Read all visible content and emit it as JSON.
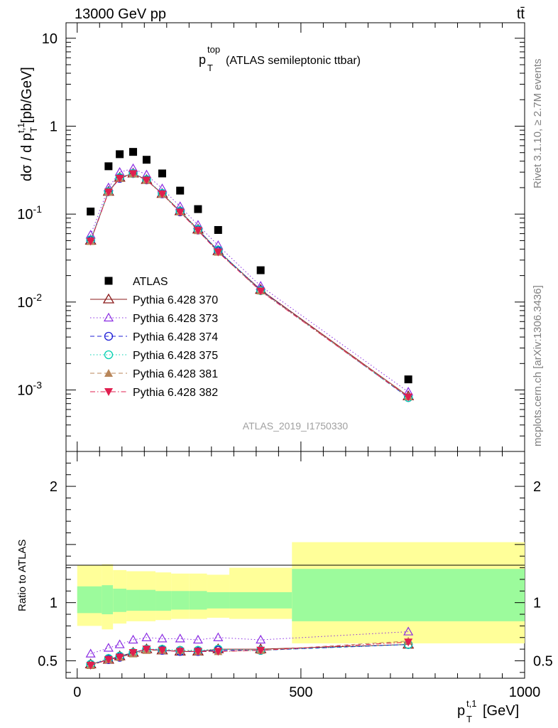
{
  "header": {
    "energy_label": "13000 GeV pp",
    "process_label": "tt̄",
    "plot_title_main": "p",
    "plot_title_sup": "top",
    "plot_title_sub": "T",
    "plot_title_rest": " (ATLAS semileptonic ttbar)",
    "side_label_rivet": "Rivet 3.1.10, ≥ 2.7M events",
    "side_label_mcplots": "mcplots.cern.ch [arXiv:1306.3436]",
    "analysis_id": "ATLAS_2019_I1750330"
  },
  "colors": {
    "ATLAS": "#000000",
    "p370": "#8b1a1a",
    "p373": "#8a2be2",
    "p374": "#1f1fd6",
    "p375": "#00d0b0",
    "p381": "#b8865a",
    "p382": "#e01f4f",
    "band_green": "#9cfb9c",
    "band_yellow": "#ffff99"
  },
  "chart_data": [
    {
      "type": "scatter",
      "panel": "main",
      "ylabel": "dσ / d p_T^{t,1} [pb/GeV]",
      "yscale": "log",
      "ylim": [
        0.0002,
        15
      ],
      "xlim": [
        -25,
        1000
      ],
      "y_tick_labels": [
        "10",
        "1",
        "10^-1",
        "10^-2",
        "10^-3"
      ],
      "x": [
        30,
        70,
        95,
        125,
        155,
        190,
        230,
        270,
        315,
        410,
        740
      ],
      "series": [
        {
          "name": "ATLAS",
          "marker": "square",
          "values": [
            0.107,
            0.35,
            0.48,
            0.51,
            0.415,
            0.29,
            0.185,
            0.114,
            0.066,
            0.023,
            0.00132
          ]
        },
        {
          "name": "Pythia 6.428 370",
          "marker": "triangle-open",
          "line": "solid",
          "values": [
            0.05,
            0.18,
            0.26,
            0.29,
            0.245,
            0.17,
            0.108,
            0.067,
            0.038,
            0.0138,
            0.00085
          ]
        },
        {
          "name": "Pythia 6.428 373",
          "marker": "triangle-open-small",
          "line": "dotted",
          "values": [
            0.058,
            0.2,
            0.3,
            0.33,
            0.28,
            0.195,
            0.122,
            0.075,
            0.044,
            0.0152,
            0.00095
          ]
        },
        {
          "name": "Pythia 6.428 374",
          "marker": "circle-open",
          "line": "dashed",
          "values": [
            0.05,
            0.18,
            0.255,
            0.29,
            0.245,
            0.17,
            0.106,
            0.066,
            0.038,
            0.0136,
            0.00082
          ]
        },
        {
          "name": "Pythia 6.428 375",
          "marker": "circle-open",
          "line": "dotted",
          "values": [
            0.051,
            0.18,
            0.26,
            0.29,
            0.247,
            0.172,
            0.108,
            0.067,
            0.039,
            0.0135,
            0.00082
          ]
        },
        {
          "name": "Pythia 6.428 381",
          "marker": "triangle-filled",
          "line": "dashed",
          "values": [
            0.049,
            0.178,
            0.255,
            0.287,
            0.243,
            0.169,
            0.106,
            0.065,
            0.037,
            0.0134,
            0.00084
          ]
        },
        {
          "name": "Pythia 6.428 382",
          "marker": "triangle-down-filled",
          "line": "dashdot",
          "values": [
            0.049,
            0.178,
            0.255,
            0.288,
            0.243,
            0.169,
            0.105,
            0.065,
            0.037,
            0.0133,
            0.00083
          ]
        }
      ]
    },
    {
      "type": "line",
      "panel": "ratio",
      "ylabel": "Ratio to ATLAS",
      "xlabel": "p_T^{t,1} [GeV]",
      "ylim": [
        0.35,
        2.3
      ],
      "xlim": [
        -25,
        1000
      ],
      "x_tick_labels": [
        "0",
        "500",
        "1000"
      ],
      "y_tick_labels": [
        "0.5",
        "1",
        "2"
      ],
      "band_edges": [
        0,
        55,
        80,
        110,
        140,
        175,
        210,
        250,
        290,
        340,
        480,
        1000
      ],
      "band_green": [
        [
          0.91,
          1.14
        ],
        [
          0.9,
          1.15
        ],
        [
          0.92,
          1.12
        ],
        [
          0.93,
          1.11
        ],
        [
          0.93,
          1.11
        ],
        [
          0.93,
          1.1
        ],
        [
          0.94,
          1.1
        ],
        [
          0.94,
          1.1
        ],
        [
          0.95,
          1.09
        ],
        [
          0.95,
          1.09
        ],
        [
          0.84,
          1.29
        ]
      ],
      "band_yellow": [
        [
          0.8,
          1.32
        ],
        [
          0.77,
          1.33
        ],
        [
          0.82,
          1.28
        ],
        [
          0.84,
          1.27
        ],
        [
          0.84,
          1.27
        ],
        [
          0.85,
          1.26
        ],
        [
          0.86,
          1.25
        ],
        [
          0.86,
          1.25
        ],
        [
          0.87,
          1.24
        ],
        [
          0.86,
          1.3
        ],
        [
          0.65,
          1.52
        ]
      ],
      "x": [
        30,
        70,
        95,
        125,
        155,
        190,
        230,
        270,
        315,
        410,
        740
      ],
      "series": [
        {
          "name": "Pythia 6.428 370",
          "values": [
            0.47,
            0.51,
            0.54,
            0.57,
            0.6,
            0.59,
            0.58,
            0.58,
            0.6,
            0.6,
            0.64
          ]
        },
        {
          "name": "Pythia 6.428 373",
          "values": [
            0.56,
            0.61,
            0.64,
            0.68,
            0.7,
            0.69,
            0.69,
            0.68,
            0.7,
            0.68,
            0.75
          ]
        },
        {
          "name": "Pythia 6.428 374",
          "values": [
            0.47,
            0.51,
            0.53,
            0.57,
            0.6,
            0.59,
            0.58,
            0.58,
            0.59,
            0.59,
            0.64
          ]
        },
        {
          "name": "Pythia 6.428 375",
          "values": [
            0.47,
            0.52,
            0.54,
            0.57,
            0.6,
            0.6,
            0.59,
            0.59,
            0.6,
            0.59,
            0.64
          ]
        },
        {
          "name": "Pythia 6.428 381",
          "values": [
            0.46,
            0.51,
            0.53,
            0.56,
            0.59,
            0.59,
            0.59,
            0.58,
            0.58,
            0.59,
            0.67
          ]
        },
        {
          "name": "Pythia 6.428 382",
          "values": [
            0.46,
            0.51,
            0.53,
            0.57,
            0.6,
            0.59,
            0.58,
            0.58,
            0.58,
            0.59,
            0.66
          ]
        }
      ]
    }
  ]
}
